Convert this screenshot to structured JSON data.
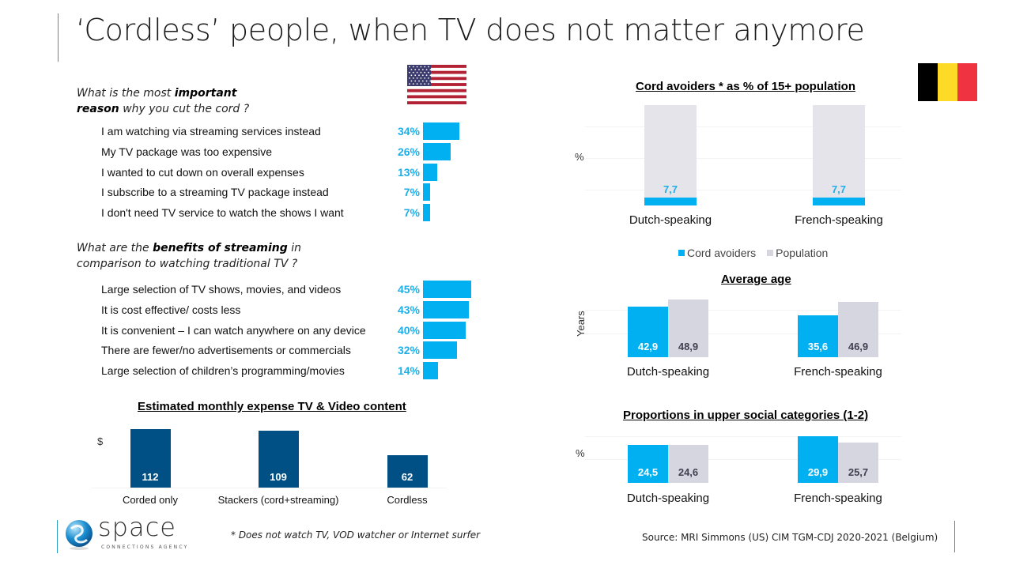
{
  "title": "‘Cordless’ people, when TV does not matter anymore",
  "flags": {
    "left": "us-flag",
    "right": "belgium-flag"
  },
  "colors": {
    "accent_blue": "#00b0f0",
    "value_blue": "#1eaee8",
    "navy": "#005085",
    "population_gray": "#d5d6e0",
    "population_gray_tall": "#e4e4ea",
    "dark_label": "#404050",
    "title_rule": "#2a9fc0",
    "be_black": "#000000",
    "be_yellow": "#fdda25",
    "be_red": "#ef3340"
  },
  "question1": {
    "part1": "What is the most ",
    "bold1": "important",
    "bold2": "reason",
    "part2": " why you cut the cord ?"
  },
  "question2": {
    "part1": "What are the ",
    "bold1": "benefits of streaming",
    "part2": " in",
    "line2": "comparison to watching traditional TV ?"
  },
  "footnote": "* Does not watch TV, VOD watcher or Internet  surfer",
  "source": "Source: MRI  Simmons (US)  CIM  TGM-CDJ  2020-2021 (Belgium)",
  "logo": {
    "name": "space",
    "tagline": "CONNECTIONS AGENCY"
  },
  "chart_data": [
    {
      "id": "reasons",
      "type": "bar",
      "orientation": "horizontal",
      "title": "What is the most important reason why you cut the cord ?",
      "categories": [
        "I am watching via streaming services instead",
        "My TV package was too expensive",
        "I wanted to cut down on overall expenses",
        "I subscribe to a streaming TV package instead",
        "I don't need TV service to watch the shows I want"
      ],
      "values": [
        34,
        26,
        13,
        7,
        7
      ],
      "value_labels": [
        "34%",
        "26%",
        "13%",
        "7%",
        "7%"
      ],
      "unit": "%",
      "xlim": [
        0,
        45
      ]
    },
    {
      "id": "benefits",
      "type": "bar",
      "orientation": "horizontal",
      "title": "What are the benefits of streaming in comparison to watching traditional TV ?",
      "categories": [
        "Large selection of TV shows, movies, and videos",
        "It is cost effective/ costs less",
        "It is convenient – I can watch anywhere on any device",
        "There are fewer/no advertisements or commercials",
        "Large selection of children’s programming/movies"
      ],
      "values": [
        45,
        43,
        40,
        32,
        14
      ],
      "value_labels": [
        "45%",
        "43%",
        "40%",
        "32%",
        "14%"
      ],
      "unit": "%",
      "xlim": [
        0,
        45
      ]
    },
    {
      "id": "expense",
      "type": "bar",
      "title": "Estimated monthly expense TV & Video content",
      "ylabel": "$",
      "categories": [
        "Corded only",
        "Stackers (cord+streaming)",
        "Cordless"
      ],
      "values": [
        112,
        109,
        62
      ],
      "value_labels": [
        "112",
        "109",
        "62"
      ],
      "ylim": [
        0,
        112
      ]
    },
    {
      "id": "cord_avoiders",
      "type": "bar",
      "stacked": true,
      "title": "Cord avoiders * as % of 15+ population",
      "ylabel": "%",
      "categories": [
        "Dutch-speaking",
        "French-speaking"
      ],
      "series": [
        {
          "name": "Cord avoiders",
          "values": [
            7.7,
            7.7
          ],
          "value_labels": [
            "7,7",
            "7,7"
          ]
        },
        {
          "name": "Population",
          "values": [
            100,
            100
          ]
        }
      ],
      "legend": [
        "Cord avoiders",
        "Population"
      ],
      "legend_position": "bottom",
      "ylim": [
        0,
        100
      ]
    },
    {
      "id": "average_age",
      "type": "bar",
      "title": "Average age",
      "ylabel": "Years",
      "categories": [
        "Dutch-speaking",
        "French-speaking"
      ],
      "series": [
        {
          "name": "Cord avoiders",
          "values": [
            42.9,
            35.6
          ],
          "value_labels": [
            "42,9",
            "35,6"
          ]
        },
        {
          "name": "Population",
          "values": [
            48.9,
            46.9
          ],
          "value_labels": [
            "48,9",
            "46,9"
          ]
        }
      ],
      "ylim": [
        0,
        50
      ]
    },
    {
      "id": "social_categories",
      "type": "bar",
      "title": "Proportions in upper social categories (1-2)",
      "ylabel": "%",
      "categories": [
        "Dutch-speaking",
        "French-speaking"
      ],
      "series": [
        {
          "name": "Cord avoiders",
          "values": [
            24.5,
            29.9
          ],
          "value_labels": [
            "24,5",
            "29,9"
          ]
        },
        {
          "name": "Population",
          "values": [
            24.6,
            25.7
          ],
          "value_labels": [
            "24,6",
            "25,7"
          ]
        }
      ],
      "ylim": [
        0,
        30
      ]
    }
  ]
}
